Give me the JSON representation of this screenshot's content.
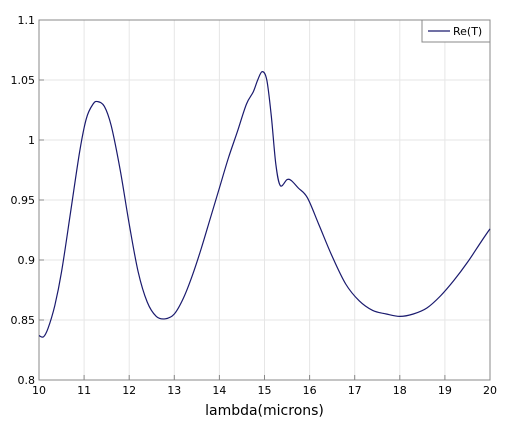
{
  "chart_data": {
    "type": "line",
    "xlabel": "lambda(microns)",
    "ylabel": "",
    "xlim": [
      10,
      20
    ],
    "ylim": [
      0.8,
      1.1
    ],
    "x_ticks": [
      "10",
      "11",
      "12",
      "13",
      "14",
      "15",
      "16",
      "17",
      "18",
      "19",
      "20"
    ],
    "y_ticks": [
      "0.8",
      "0.85",
      "0.9",
      "0.95",
      "1",
      "1.05",
      "1.1"
    ],
    "grid": true,
    "legend_position": "top-right",
    "series": [
      {
        "name": "Re(T)",
        "color": "#1a1a6e",
        "x": [
          10.0,
          10.1,
          10.2,
          10.35,
          10.5,
          10.7,
          10.9,
          11.05,
          11.2,
          11.3,
          11.45,
          11.6,
          11.8,
          12.0,
          12.2,
          12.4,
          12.6,
          12.8,
          13.0,
          13.2,
          13.4,
          13.6,
          13.8,
          14.0,
          14.2,
          14.4,
          14.6,
          14.75,
          14.85,
          14.95,
          15.05,
          15.15,
          15.25,
          15.35,
          15.5,
          15.6,
          15.75,
          15.95,
          16.2,
          16.5,
          16.8,
          17.1,
          17.4,
          17.7,
          18.0,
          18.3,
          18.6,
          18.9,
          19.2,
          19.5,
          19.8,
          20.0
        ],
        "y": [
          0.837,
          0.836,
          0.843,
          0.862,
          0.89,
          0.94,
          0.99,
          1.018,
          1.03,
          1.032,
          1.028,
          1.012,
          0.975,
          0.93,
          0.89,
          0.865,
          0.853,
          0.851,
          0.855,
          0.868,
          0.887,
          0.91,
          0.935,
          0.96,
          0.985,
          1.007,
          1.03,
          1.04,
          1.05,
          1.057,
          1.05,
          1.02,
          0.98,
          0.962,
          0.967,
          0.966,
          0.96,
          0.952,
          0.93,
          0.903,
          0.88,
          0.866,
          0.858,
          0.855,
          0.853,
          0.855,
          0.86,
          0.87,
          0.883,
          0.898,
          0.915,
          0.926
        ]
      }
    ]
  }
}
